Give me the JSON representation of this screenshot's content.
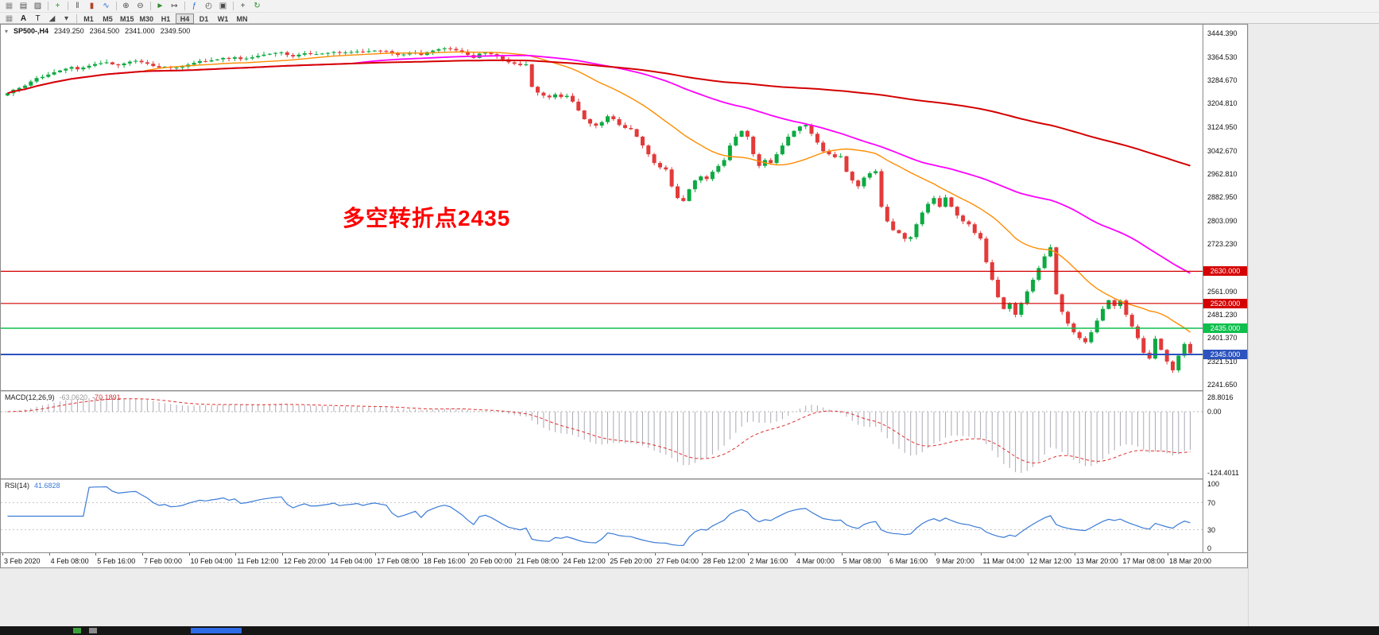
{
  "toolbar": {
    "row1": [
      {
        "name": "window-grip",
        "glyph": "▦",
        "color": "#8a8a8a"
      },
      {
        "name": "new-chart",
        "glyph": "▤",
        "color": "#4a4a4a"
      },
      {
        "name": "chart-profiles",
        "glyph": "▨",
        "color": "#4a4a4a"
      },
      {
        "name": "separator",
        "sep": true
      },
      {
        "name": "new-order",
        "glyph": "+",
        "color": "#1a9c1a"
      },
      {
        "name": "separator",
        "sep": true
      },
      {
        "name": "chart-bars",
        "glyph": "‖",
        "color": "#4a4a4a"
      },
      {
        "name": "chart-candles",
        "glyph": "▮",
        "color": "#b0462b"
      },
      {
        "name": "chart-line",
        "glyph": "∿",
        "color": "#2a6fd6"
      },
      {
        "name": "separator",
        "sep": true
      },
      {
        "name": "zoom-in",
        "glyph": "⊕",
        "color": "#4a4a4a"
      },
      {
        "name": "zoom-out",
        "glyph": "⊖",
        "color": "#4a4a4a"
      },
      {
        "name": "separator",
        "sep": true
      },
      {
        "name": "auto-scroll",
        "glyph": "►",
        "color": "#2e8b2e"
      },
      {
        "name": "chart-shift",
        "glyph": "↦",
        "color": "#4a4a4a"
      },
      {
        "name": "separator",
        "sep": true
      },
      {
        "name": "indicators",
        "glyph": "ƒ",
        "color": "#2a6fd6"
      },
      {
        "name": "periods",
        "glyph": "◴",
        "color": "#4a4a4a"
      },
      {
        "name": "templates",
        "glyph": "▣",
        "color": "#4a4a4a"
      },
      {
        "name": "separator",
        "sep": true
      },
      {
        "name": "crosshair",
        "glyph": "+",
        "color": "#4a4a4a"
      },
      {
        "name": "refresh",
        "glyph": "↻",
        "color": "#2e8b2e"
      }
    ],
    "row2_icons": [
      {
        "name": "drawing-grip",
        "glyph": "▦",
        "color": "#8a8a8a"
      },
      {
        "name": "font-label",
        "glyph": "A",
        "color": "#222222"
      },
      {
        "name": "text-tool",
        "glyph": "T",
        "color": "#222222"
      },
      {
        "name": "shapes-tool",
        "glyph": "◢",
        "color": "#4a4a4a"
      },
      {
        "name": "shapes-dropdown",
        "glyph": "▾",
        "color": "#4a4a4a"
      }
    ],
    "timeframes": [
      "M1",
      "M5",
      "M15",
      "M30",
      "H1",
      "H4",
      "D1",
      "W1",
      "MN"
    ],
    "active_timeframe": "H4"
  },
  "bottom_bar": {
    "segments": [
      {
        "x": 92,
        "w": 10,
        "color": "#3aa13a"
      },
      {
        "x": 112,
        "w": 10,
        "color": "#8a8a8a"
      },
      {
        "x": 240,
        "w": 64,
        "color": "#2e6be6"
      }
    ]
  },
  "chart_data": {
    "type": "candlestick",
    "symbol": "SP500-",
    "timeframe": "H4",
    "header": {
      "pair": "SP500-,H4",
      "open": "2349.250",
      "high": "2364.500",
      "low": "2341.000",
      "close": "2349.500"
    },
    "annotation": {
      "text": "多空转折点2435",
      "color": "#ff0000"
    },
    "ylim": [
      2222.6,
      3475
    ],
    "first_open": 3232,
    "colors": {
      "up": "#0caa41",
      "down": "#e33a3a"
    },
    "closes": [
      3240,
      3252,
      3258,
      3266,
      3280,
      3292,
      3296,
      3304,
      3312,
      3318,
      3324,
      3330,
      3322,
      3328,
      3334,
      3340,
      3343,
      3346,
      3339,
      3336,
      3342,
      3348,
      3351,
      3346,
      3341,
      3333,
      3328,
      3331,
      3327,
      3328,
      3331,
      3338,
      3344,
      3350,
      3349,
      3353,
      3356,
      3361,
      3358,
      3363,
      3357,
      3359,
      3363,
      3368,
      3372,
      3375,
      3378,
      3380,
      3371,
      3366,
      3372,
      3377,
      3374,
      3374,
      3376,
      3378,
      3381,
      3378,
      3380,
      3381,
      3383,
      3381,
      3384,
      3386,
      3385,
      3384,
      3376,
      3371,
      3373,
      3376,
      3379,
      3371,
      3381,
      3386,
      3391,
      3394,
      3392,
      3387,
      3381,
      3371,
      3361,
      3376,
      3379,
      3374,
      3366,
      3356,
      3346,
      3341,
      3336,
      3339,
      3262,
      3242,
      3232,
      3226,
      3236,
      3227,
      3231,
      3211,
      3181,
      3151,
      3136,
      3129,
      3141,
      3161,
      3151,
      3131,
      3121,
      3117,
      3091,
      3061,
      3031,
      3001,
      2986,
      2979,
      2921,
      2881,
      2871,
      2911,
      2941,
      2955,
      2946,
      2971,
      2991,
      3011,
      3061,
      3091,
      3111,
      3091,
      3031,
      2991,
      3011,
      3001,
      3031,
      3061,
      3091,
      3111,
      3126,
      3131,
      3101,
      3071,
      3041,
      3031,
      3021,
      3024,
      2971,
      2941,
      2921,
      2951,
      2966,
      2973,
      2851,
      2801,
      2771,
      2761,
      2741,
      2747,
      2791,
      2831,
      2861,
      2881,
      2851,
      2883,
      2851,
      2821,
      2801,
      2791,
      2761,
      2742,
      2661,
      2601,
      2541,
      2501,
      2521,
      2481,
      2521,
      2561,
      2601,
      2641,
      2681,
      2712,
      2551,
      2491,
      2451,
      2421,
      2401,
      2387,
      2421,
      2461,
      2501,
      2531,
      2511,
      2530,
      2481,
      2441,
      2401,
      2351,
      2331,
      2399,
      2361,
      2321,
      2291,
      2341,
      2381,
      2349.5
    ],
    "overlays": [
      {
        "name": "ma-fast",
        "type": "sma",
        "period": 24,
        "color": "#ff8c00",
        "width": 1.4
      },
      {
        "name": "ma-mid",
        "type": "sma",
        "period": 60,
        "color": "#ff00ff",
        "width": 1.8
      },
      {
        "name": "ma-slow",
        "type": "sma",
        "period": 160,
        "color": "#d40000",
        "width": 2
      }
    ],
    "hlines": [
      {
        "price": 2630,
        "color": "#d40000",
        "width": 1.2
      },
      {
        "price": 2520,
        "color": "#d40000",
        "width": 1.2
      },
      {
        "price": 2435,
        "color": "#0fbf4d",
        "width": 1.6
      },
      {
        "price": 2345,
        "color": "#2d53be",
        "width": 2
      }
    ],
    "price_ticks": [
      {
        "t": "3444.390",
        "p": 3444.39
      },
      {
        "t": "3364.530",
        "p": 3364.53
      },
      {
        "t": "3284.670",
        "p": 3284.67
      },
      {
        "t": "3204.810",
        "p": 3204.81
      },
      {
        "t": "3124.950",
        "p": 3124.95
      },
      {
        "t": "3042.670",
        "p": 3042.67
      },
      {
        "t": "2962.810",
        "p": 2962.81
      },
      {
        "t": "2882.950",
        "p": 2882.95
      },
      {
        "t": "2803.090",
        "p": 2803.09
      },
      {
        "t": "2723.230",
        "p": 2723.23
      },
      {
        "t": "2561.090",
        "p": 2561.09
      },
      {
        "t": "2481.230",
        "p": 2481.23
      },
      {
        "t": "2401.370",
        "p": 2401.37
      },
      {
        "t": "2321.510",
        "p": 2321.51
      },
      {
        "t": "2241.650",
        "p": 2241.65
      }
    ],
    "price_badges": [
      {
        "t": "2630.000",
        "p": 2630,
        "c": "#d40000"
      },
      {
        "t": "2520.000",
        "p": 2520,
        "c": "#d40000"
      },
      {
        "t": "2435.000",
        "p": 2435,
        "c": "#0fbf4d"
      },
      {
        "t": "2345.000",
        "p": 2345,
        "c": "#2d53be"
      }
    ],
    "x_labels": [
      "3 Feb 2020",
      "4 Feb 08:00",
      "5 Feb 16:00",
      "7 Feb 00:00",
      "10 Feb 04:00",
      "11 Feb 12:00",
      "12 Feb 20:00",
      "14 Feb 04:00",
      "17 Feb 08:00",
      "18 Feb 16:00",
      "20 Feb 00:00",
      "21 Feb 08:00",
      "24 Feb 12:00",
      "25 Feb 20:00",
      "27 Feb 04:00",
      "28 Feb 12:00",
      "2 Mar 16:00",
      "4 Mar 00:00",
      "5 Mar 08:00",
      "6 Mar 16:00",
      "9 Mar 20:00",
      "11 Mar 04:00",
      "12 Mar 12:00",
      "13 Mar 20:00",
      "17 Mar 08:00",
      "18 Mar 20:00"
    ],
    "macd": {
      "label": "MACD(12,26,9)",
      "main_value": "-63.0620",
      "signal_value": "-70.1891",
      "axis": [
        "28.8016",
        "0.00",
        "-124.4011"
      ],
      "params": [
        12,
        26,
        9
      ]
    },
    "rsi": {
      "label": "RSI(14)",
      "value": "41.6828",
      "axis": [
        "100",
        "70",
        "30",
        "0"
      ],
      "levels": [
        70,
        30
      ],
      "period": 14
    }
  }
}
